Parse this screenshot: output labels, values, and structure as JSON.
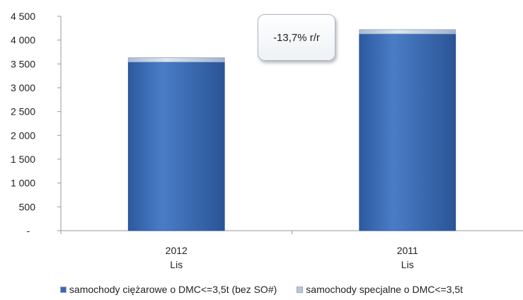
{
  "chart_data": {
    "type": "bar",
    "stacked": true,
    "categories": [
      {
        "year": "2012",
        "month": "Lis"
      },
      {
        "year": "2011",
        "month": "Lis"
      }
    ],
    "series": [
      {
        "name": "samochody ciężarowe o DMC<=3,5t (bez SO#)",
        "values": [
          3540,
          4130
        ],
        "color": "#3a6ab0"
      },
      {
        "name": "samochody specjalne o DMC<=3,5t",
        "values": [
          90,
          90
        ],
        "color": "#b9c8dd"
      }
    ],
    "ylim": [
      0,
      4500
    ],
    "y_ticks": [
      "-",
      "500",
      "1 000",
      "1 500",
      "2 000",
      "2 500",
      "3 000",
      "3 500",
      "4 000",
      "4 500"
    ],
    "annotation": "-13,7% r/r",
    "legend_position": "bottom",
    "grid": false
  }
}
